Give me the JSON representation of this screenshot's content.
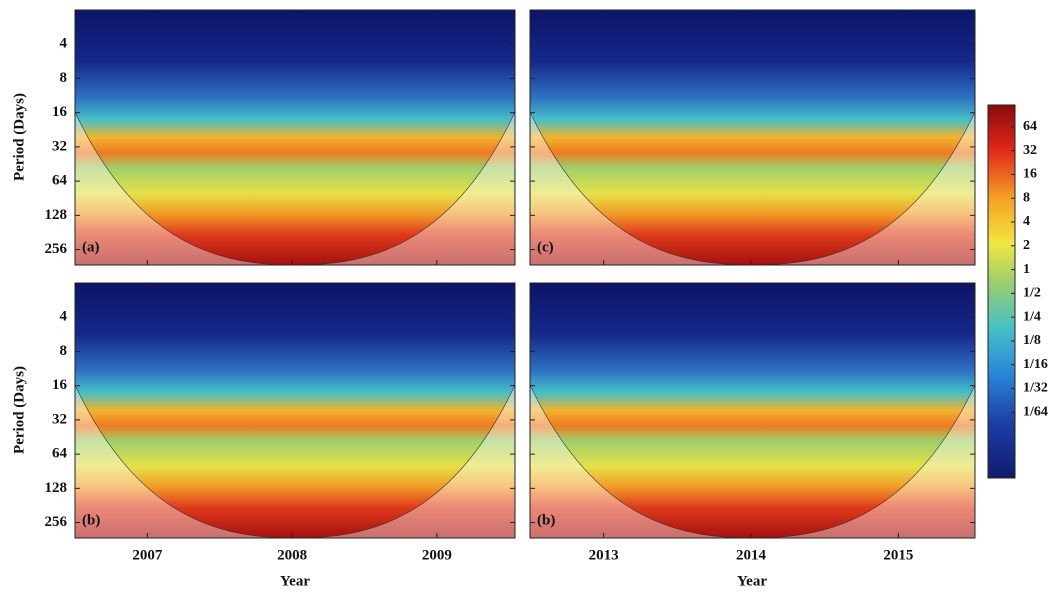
{
  "y_axis": {
    "label": "Period (Days)",
    "scale": "log2",
    "lim": [
      2,
      350
    ],
    "ticks": [
      4,
      8,
      16,
      32,
      64,
      128,
      256
    ]
  },
  "x_axis_label": "Year",
  "panels": [
    {
      "label": "(a)",
      "xlim": [
        2006.5,
        2009.54
      ],
      "xticks": [
        2007,
        2008,
        2009
      ]
    },
    {
      "label": "(c)",
      "xlim": [
        2012.5,
        2015.52
      ],
      "xticks": [
        2013,
        2014,
        2015
      ]
    },
    {
      "label": "(b)",
      "xlim": [
        2006.5,
        2009.54
      ],
      "xticks": [
        2007,
        2008,
        2009
      ]
    },
    {
      "label": "(b)",
      "xlim": [
        2012.5,
        2015.52
      ],
      "xticks": [
        2013,
        2014,
        2015
      ]
    }
  ],
  "colorbar": {
    "scale": "log2",
    "lim": [
      0.0023,
      121
    ],
    "ticks": [
      64,
      32,
      16,
      8,
      4,
      2,
      1,
      {
        "value": 0.5,
        "label": "1/2"
      },
      {
        "value": 0.25,
        "label": "1/4"
      },
      {
        "value": 0.125,
        "label": "1/8"
      },
      {
        "value": 0.0625,
        "label": "1/16"
      },
      {
        "value": 0.03125,
        "label": "1/32"
      },
      {
        "value": 0.015625,
        "label": "1/64"
      }
    ]
  }
}
